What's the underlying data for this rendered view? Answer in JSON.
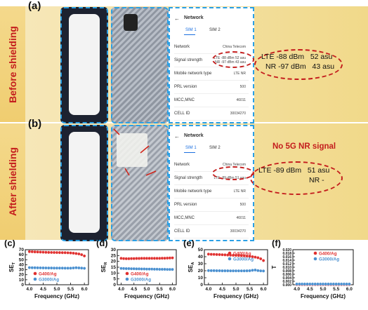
{
  "panels": {
    "a": {
      "letter": "(a)",
      "label": "Before shielding"
    },
    "b": {
      "letter": "(b)",
      "label": "After shielding"
    }
  },
  "screens": {
    "a": {
      "title": "Network",
      "sim1": "SIM 1",
      "sim2": "SIM 2",
      "rows": [
        {
          "k": "Network",
          "v": "China Telecom"
        },
        {
          "k": "Signal strength",
          "v": "LTE -88 dBm 52 asu\nNR -97 dBm 43 asu"
        },
        {
          "k": "Mobile network type",
          "v": "LTE NR"
        },
        {
          "k": "PRL version",
          "v": "500"
        },
        {
          "k": "MCC,MNC",
          "v": "46011"
        },
        {
          "k": "CELL ID",
          "v": "30034270"
        }
      ]
    },
    "b": {
      "title": "Network",
      "sim1": "SIM 1",
      "sim2": "SIM 2",
      "rows": [
        {
          "k": "Network",
          "v": "China Telecom"
        },
        {
          "k": "Signal strength",
          "v": "LTE -89 dBm 51 asu"
        },
        {
          "k": "Mobile network type",
          "v": "LTE NR"
        },
        {
          "k": "PRL version",
          "v": "500"
        },
        {
          "k": "MCC,MNC",
          "v": "46011"
        },
        {
          "k": "CELL ID",
          "v": "30034270"
        }
      ]
    }
  },
  "readouts": {
    "a": {
      "line1": "LTE -88 dBm   52 asu",
      "line2": "NR -97 dBm   43 asu"
    },
    "b": {
      "line1": "LTE -89 dBm   51 asu",
      "line2": "NR -",
      "note": "No 5G NR signal"
    }
  },
  "colors": {
    "g400": "#e0302f",
    "g3000": "#4a90d0",
    "accent": "#c41d1d",
    "dash": "#2aa0e6"
  },
  "chart_data": [
    {
      "id": "c",
      "letter": "(c)",
      "type": "scatter",
      "xlabel": "Frequency (GHz)",
      "ylabel": "SE_T",
      "xlim": [
        3.85,
        6.15
      ],
      "xticks": [
        4.0,
        4.5,
        5.0,
        5.5,
        6.0
      ],
      "ylim": [
        0,
        70
      ],
      "yticks": [
        0,
        10,
        20,
        30,
        40,
        50,
        60,
        70
      ],
      "legend_position": "bottom-left",
      "series": [
        {
          "name": "G400/Ag",
          "color": "#e0302f",
          "x": [
            4.0,
            4.1,
            4.2,
            4.3,
            4.4,
            4.5,
            4.6,
            4.7,
            4.8,
            4.9,
            5.0,
            5.1,
            5.2,
            5.3,
            5.4,
            5.5,
            5.6,
            5.7,
            5.8,
            5.9,
            6.0
          ],
          "y": [
            66.2,
            65.9,
            65.6,
            65.4,
            65.2,
            65.0,
            64.8,
            64.6,
            64.5,
            64.4,
            64.3,
            64.2,
            64.1,
            64.0,
            63.8,
            63.5,
            63.0,
            62.3,
            61.5,
            60.0,
            57.5
          ]
        },
        {
          "name": "G3000/Ag",
          "color": "#4a90d0",
          "x": [
            4.0,
            4.1,
            4.2,
            4.3,
            4.4,
            4.5,
            4.6,
            4.7,
            4.8,
            4.9,
            5.0,
            5.1,
            5.2,
            5.3,
            5.4,
            5.5,
            5.6,
            5.7,
            5.8,
            5.9,
            6.0
          ],
          "y": [
            34.2,
            34.0,
            33.9,
            33.8,
            33.7,
            33.6,
            33.5,
            33.4,
            33.4,
            33.3,
            33.3,
            33.2,
            33.2,
            33.1,
            33.1,
            33.1,
            33.5,
            34.0,
            33.6,
            33.2,
            32.8
          ]
        }
      ]
    },
    {
      "id": "d",
      "letter": "(d)",
      "type": "scatter",
      "xlabel": "Frequency (GHz)",
      "ylabel": "SE_R",
      "xlim": [
        3.85,
        6.15
      ],
      "xticks": [
        4.0,
        4.5,
        5.0,
        5.5,
        6.0
      ],
      "ylim": [
        0,
        30
      ],
      "yticks": [
        0,
        5,
        10,
        15,
        20,
        25,
        30
      ],
      "legend_position": "bottom-center",
      "series": [
        {
          "name": "G400/Ag",
          "color": "#e0302f",
          "x": [
            4.0,
            4.1,
            4.2,
            4.3,
            4.4,
            4.5,
            4.6,
            4.7,
            4.8,
            4.9,
            5.0,
            5.1,
            5.2,
            5.3,
            5.4,
            5.5,
            5.6,
            5.7,
            5.8,
            5.9,
            6.0
          ],
          "y": [
            22.6,
            22.4,
            22.3,
            22.3,
            22.4,
            22.4,
            22.5,
            22.5,
            22.6,
            22.6,
            22.6,
            22.6,
            22.6,
            22.6,
            22.6,
            22.6,
            22.7,
            22.7,
            22.8,
            22.9,
            23.0
          ]
        },
        {
          "name": "G3000/Ag",
          "color": "#4a90d0",
          "x": [
            4.0,
            4.1,
            4.2,
            4.3,
            4.4,
            4.5,
            4.6,
            4.7,
            4.8,
            4.9,
            5.0,
            5.1,
            5.2,
            5.3,
            5.4,
            5.5,
            5.6,
            5.7,
            5.8,
            5.9,
            6.0
          ],
          "y": [
            14.0,
            13.9,
            13.8,
            13.8,
            13.7,
            13.7,
            13.6,
            13.6,
            13.5,
            13.5,
            13.4,
            13.4,
            13.4,
            13.3,
            13.3,
            13.2,
            13.2,
            13.2,
            13.1,
            13.1,
            13.1
          ]
        }
      ]
    },
    {
      "id": "e",
      "letter": "(e)",
      "type": "scatter",
      "xlabel": "Frequency (GHz)",
      "ylabel": "SE_A",
      "xlim": [
        3.85,
        6.15
      ],
      "xticks": [
        4.0,
        4.5,
        5.0,
        5.5,
        6.0
      ],
      "ylim": [
        0,
        50
      ],
      "yticks": [
        0,
        10,
        20,
        30,
        40,
        50
      ],
      "legend_position": "top-right",
      "series": [
        {
          "name": "G400/Ag",
          "color": "#e0302f",
          "x": [
            4.0,
            4.1,
            4.2,
            4.3,
            4.4,
            4.5,
            4.6,
            4.7,
            4.8,
            4.9,
            5.0,
            5.1,
            5.2,
            5.3,
            5.4,
            5.5,
            5.6,
            5.7,
            5.8,
            5.9,
            6.0
          ],
          "y": [
            43.6,
            43.4,
            43.3,
            43.1,
            43.0,
            42.8,
            42.6,
            42.4,
            42.2,
            42.0,
            41.8,
            41.6,
            41.4,
            41.2,
            40.9,
            40.5,
            40.0,
            39.4,
            38.5,
            37.0,
            34.5
          ]
        },
        {
          "name": "G3000/Ag",
          "color": "#4a90d0",
          "x": [
            4.0,
            4.1,
            4.2,
            4.3,
            4.4,
            4.5,
            4.6,
            4.7,
            4.8,
            4.9,
            5.0,
            5.1,
            5.2,
            5.3,
            5.4,
            5.5,
            5.6,
            5.7,
            5.8,
            5.9,
            6.0
          ],
          "y": [
            20.2,
            20.1,
            20.1,
            20.0,
            20.0,
            19.9,
            19.9,
            19.9,
            19.8,
            19.8,
            19.8,
            19.8,
            19.8,
            19.8,
            19.9,
            20.0,
            20.6,
            21.0,
            20.2,
            19.8,
            19.6
          ]
        }
      ]
    },
    {
      "id": "f",
      "letter": "(f)",
      "type": "scatter",
      "xlabel": "Frequency (GHz)",
      "ylabel": "T",
      "xlim": [
        3.85,
        6.15
      ],
      "xticks": [
        4.0,
        4.5,
        5.0,
        5.5,
        6.0
      ],
      "ylim": [
        0,
        0.02
      ],
      "yticks": [
        0.0,
        0.002,
        0.004,
        0.006,
        0.008,
        0.01,
        0.012,
        0.014,
        0.016,
        0.018,
        0.02
      ],
      "legend_position": "top-right",
      "series": [
        {
          "name": "G400/Ag",
          "color": "#e0302f",
          "x": [
            4.0,
            4.1,
            4.2,
            4.3,
            4.4,
            4.5,
            4.6,
            4.7,
            4.8,
            4.9,
            5.0,
            5.1,
            5.2,
            5.3,
            5.4,
            5.5,
            5.6,
            5.7,
            5.8,
            5.9,
            6.0
          ],
          "y": [
            0.0001,
            0.0001,
            0.0001,
            0.0001,
            0.0001,
            0.0001,
            0.0001,
            0.0001,
            0.0001,
            0.0001,
            0.0001,
            0.0001,
            0.0001,
            0.0001,
            0.0001,
            0.0001,
            0.0001,
            0.0001,
            0.0001,
            0.0001,
            0.0001
          ]
        },
        {
          "name": "G3000/Ag",
          "color": "#4a90d0",
          "x": [
            4.0,
            4.1,
            4.2,
            4.3,
            4.4,
            4.5,
            4.6,
            4.7,
            4.8,
            4.9,
            5.0,
            5.1,
            5.2,
            5.3,
            5.4,
            5.5,
            5.6,
            5.7,
            5.8,
            5.9,
            6.0
          ],
          "y": [
            0.0004,
            0.0004,
            0.0004,
            0.0004,
            0.0004,
            0.0004,
            0.0004,
            0.0004,
            0.0004,
            0.0004,
            0.0004,
            0.0004,
            0.0004,
            0.0004,
            0.0004,
            0.0004,
            0.0004,
            0.0004,
            0.0004,
            0.0004,
            0.0004
          ]
        }
      ]
    }
  ]
}
